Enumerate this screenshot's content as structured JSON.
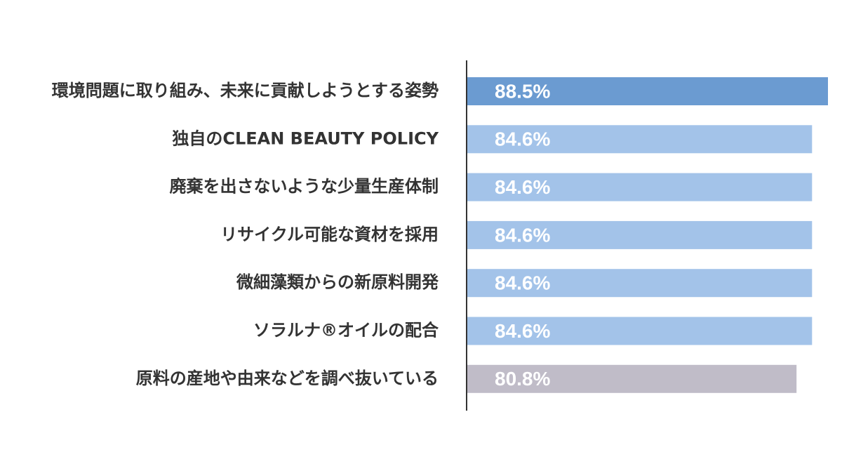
{
  "chart_data": {
    "type": "bar",
    "orientation": "horizontal",
    "categories": [
      "環境問題に取り組み、未来に貢献しようとする姿勢",
      "独自のCLEAN BEAUTY POLICY",
      "廃棄を出さないような少量生産体制",
      "リサイクル可能な資材を採用",
      "微細藻類からの新原料開発",
      "ソラルナ®オイルの配合",
      "原料の産地や由来などを調べ抜いている"
    ],
    "values": [
      88.5,
      84.6,
      84.6,
      84.6,
      84.6,
      84.6,
      80.8
    ],
    "value_labels": [
      "88.5%",
      "84.6%",
      "84.6%",
      "84.6%",
      "84.6%",
      "84.6%",
      "80.8%"
    ],
    "colors": [
      "#6b9bd1",
      "#a3c3e9",
      "#a3c3e9",
      "#a3c3e9",
      "#a3c3e9",
      "#a3c3e9",
      "#c0bcc8"
    ]
  }
}
